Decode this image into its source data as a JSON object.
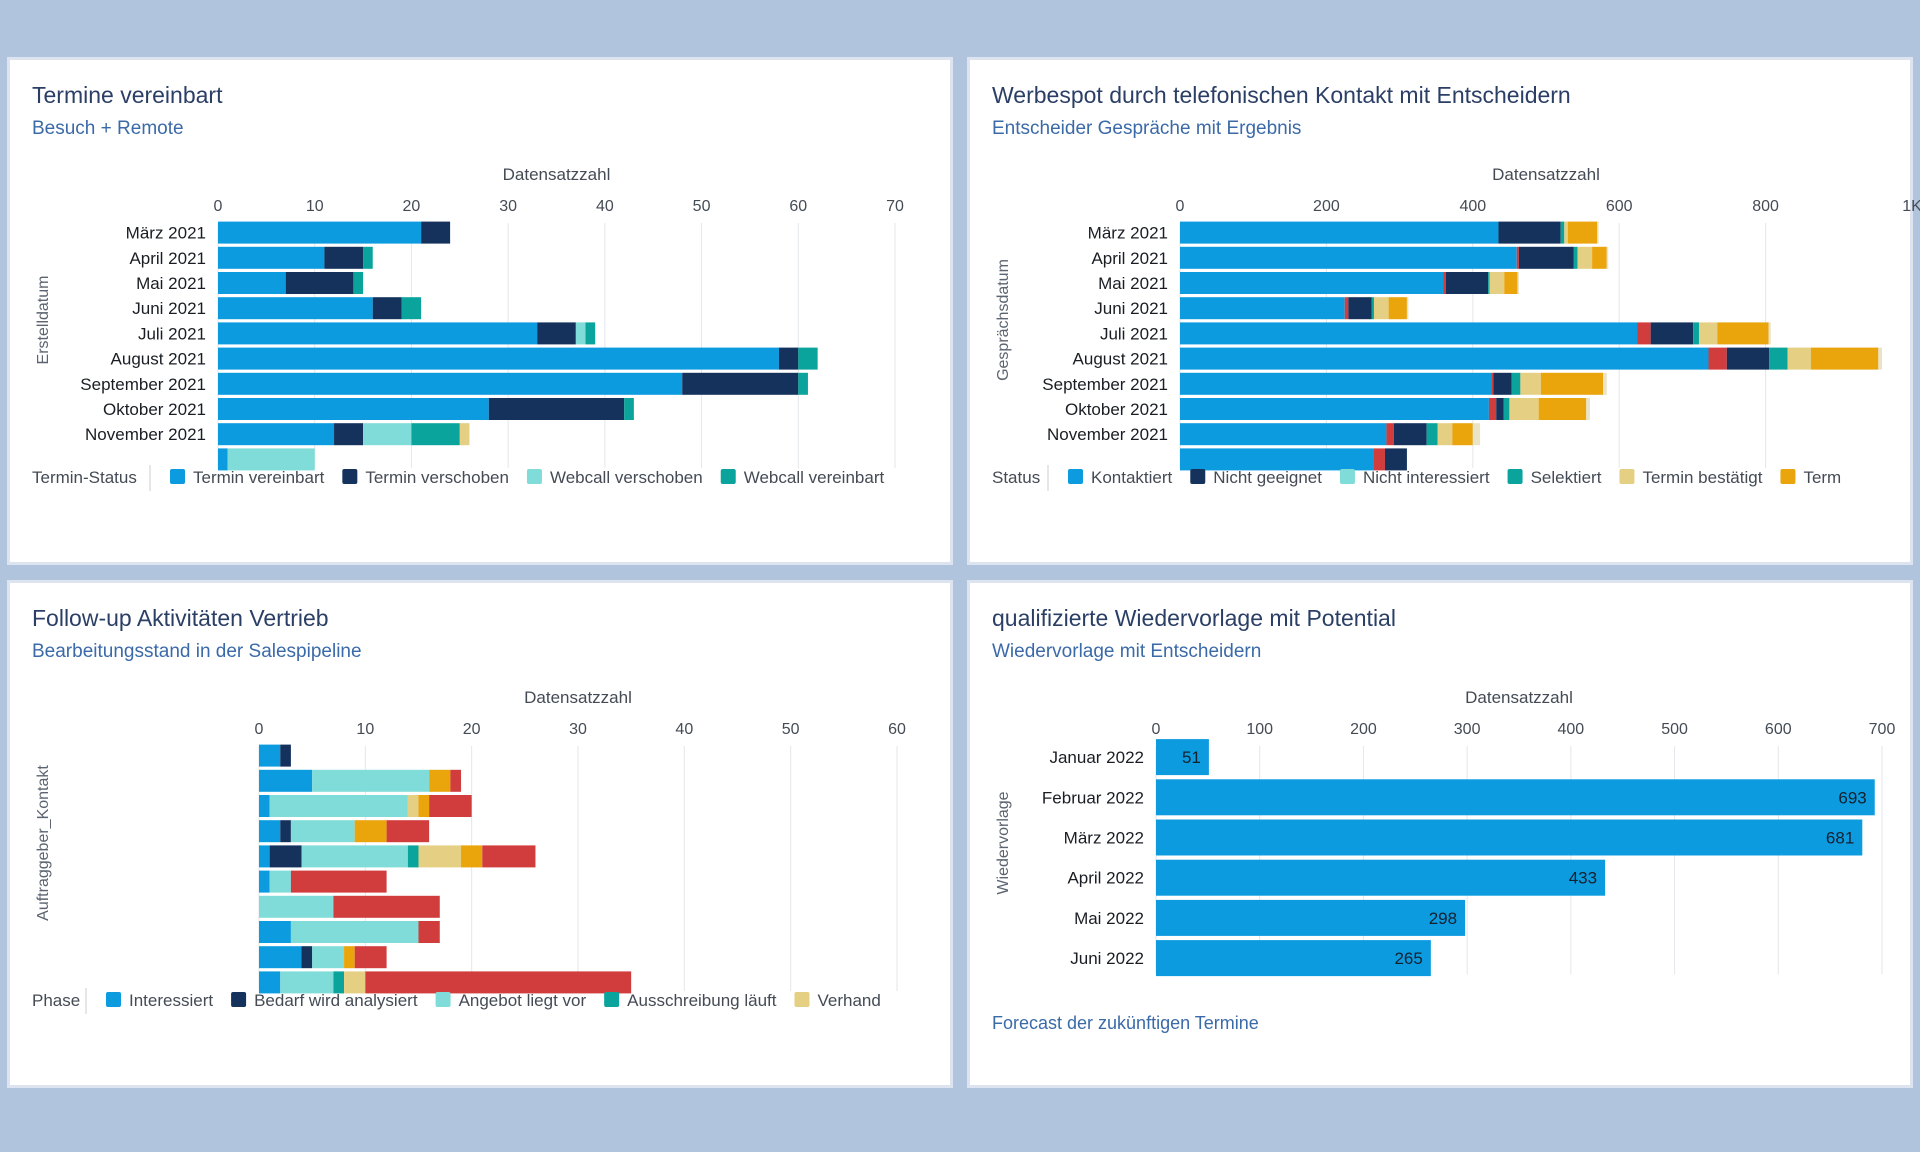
{
  "background": "#b1c4de",
  "charts": [
    {
      "id": "termine",
      "title": "Termine vereinbart",
      "subtitle": "Besuch + Remote",
      "chart_data": {
        "type": "bar",
        "orientation": "horizontal",
        "stacked": true,
        "xlabel": "Datensatzzahl",
        "ylabel": "Erstelldatum",
        "xlim": [
          0,
          70
        ],
        "ticks": [
          0,
          10,
          20,
          30,
          40,
          50,
          60,
          70
        ],
        "tick_labels": [
          "0",
          "10",
          "20",
          "30",
          "40",
          "50",
          "60",
          "70"
        ],
        "categories": [
          "März 2021",
          "April 2021",
          "Mai 2021",
          "Juni 2021",
          "Juli 2021",
          "August 2021",
          "September 2021",
          "Oktober 2021",
          "November 2021",
          ""
        ],
        "legend_title": "Termin-Status",
        "legend_position": "bottom",
        "grid": true,
        "series": [
          {
            "name": "Termin vereinbart",
            "color": "#0c9bdf",
            "values": [
              21,
              11,
              7,
              16,
              33,
              58,
              48,
              28,
              12,
              1
            ]
          },
          {
            "name": "Termin verschoben",
            "color": "#14325c",
            "values": [
              3,
              4,
              7,
              3,
              4,
              2,
              12,
              14,
              3,
              0
            ]
          },
          {
            "name": "Webcall verschoben",
            "color": "#7fdcd8",
            "values": [
              0,
              0,
              0,
              0,
              1,
              0,
              0,
              0,
              5,
              9
            ]
          },
          {
            "name": "Webcall vereinbart",
            "color": "#0aa49c",
            "values": [
              0,
              1,
              1,
              2,
              1,
              2,
              1,
              1,
              5,
              0
            ]
          },
          {
            "name": "",
            "color": "#e5cf82",
            "values": [
              0,
              0,
              0,
              0,
              0,
              0,
              0,
              0,
              1,
              0
            ]
          }
        ]
      }
    },
    {
      "id": "werbespot",
      "title": "Werbespot durch telefonischen Kontakt mit Entscheidern",
      "subtitle": "Entscheider Gespräche mit Ergebnis",
      "chart_data": {
        "type": "bar",
        "orientation": "horizontal",
        "stacked": true,
        "xlabel": "Datensatzzahl",
        "ylabel": "Gesprächsdatum",
        "xlim": [
          0,
          1000
        ],
        "ticks": [
          0,
          200,
          400,
          600,
          800,
          1000
        ],
        "tick_labels": [
          "0",
          "200",
          "400",
          "600",
          "800",
          "1K"
        ],
        "categories": [
          "März 2021",
          "April 2021",
          "Mai 2021",
          "Juni 2021",
          "Juli 2021",
          "August 2021",
          "September 2021",
          "Oktober 2021",
          "November 2021",
          ""
        ],
        "legend_title": "Status",
        "legend_position": "bottom",
        "grid": true,
        "series": [
          {
            "name": "Kontaktiert",
            "color": "#0c9bdf",
            "values": [
              435,
              460,
              360,
              225,
              625,
              722,
              425,
              422,
              282,
              265
            ]
          },
          {
            "name": "",
            "color": "#d13c3c",
            "values": [
              0,
              3,
              3,
              5,
              18,
              25,
              3,
              10,
              10,
              15
            ]
          },
          {
            "name": "Nicht geeignet",
            "color": "#14325c",
            "values": [
              85,
              75,
              58,
              32,
              58,
              58,
              25,
              10,
              45,
              30
            ]
          },
          {
            "name": "Nicht interessiert",
            "color": "#7fdcd8",
            "values": [
              0,
              0,
              0,
              0,
              0,
              0,
              0,
              0,
              0,
              0
            ]
          },
          {
            "name": "Selektiert",
            "color": "#0aa49c",
            "values": [
              5,
              5,
              2,
              3,
              8,
              25,
              12,
              8,
              15,
              0
            ]
          },
          {
            "name": "Termin bestätigt",
            "color": "#e5cf82",
            "values": [
              5,
              20,
              20,
              20,
              25,
              32,
              28,
              40,
              20,
              0
            ]
          },
          {
            "name": "Term",
            "color": "#eaa40c",
            "values": [
              40,
              20,
              18,
              25,
              70,
              92,
              85,
              65,
              28,
              0
            ]
          },
          {
            "name": "",
            "color": "#e9e3c8",
            "values": [
              2,
              2,
              2,
              2,
              3,
              5,
              5,
              5,
              10,
              0
            ]
          }
        ]
      }
    },
    {
      "id": "followup",
      "title": "Follow-up Aktivitäten Vertrieb",
      "subtitle": "Bearbeitungsstand in der Salespipeline",
      "chart_data": {
        "type": "bar",
        "orientation": "horizontal",
        "stacked": true,
        "xlabel": "Datensatzzahl",
        "ylabel": "Auftraggeber_Kontakt",
        "xlim": [
          0,
          60
        ],
        "ticks": [
          0,
          10,
          20,
          30,
          40,
          50,
          60
        ],
        "tick_labels": [
          "0",
          "10",
          "20",
          "30",
          "40",
          "50",
          "60"
        ],
        "categories": [
          "",
          "",
          "",
          "",
          "",
          "",
          "",
          "",
          "",
          ""
        ],
        "legend_title": "Phase",
        "legend_position": "bottom",
        "grid": true,
        "series": [
          {
            "name": "Interessiert",
            "color": "#0c9bdf",
            "values": [
              2,
              5,
              1,
              2,
              1,
              1,
              0,
              3,
              4,
              2
            ]
          },
          {
            "name": "Bedarf wird analysiert",
            "color": "#14325c",
            "values": [
              1,
              0,
              0,
              1,
              3,
              0,
              0,
              0,
              1,
              0
            ]
          },
          {
            "name": "Angebot liegt vor",
            "color": "#7fdcd8",
            "values": [
              0,
              11,
              13,
              6,
              10,
              2,
              7,
              12,
              3,
              5
            ]
          },
          {
            "name": "Ausschreibung läuft",
            "color": "#0aa49c",
            "values": [
              0,
              0,
              0,
              0,
              1,
              0,
              0,
              0,
              0,
              1
            ]
          },
          {
            "name": "Verhand",
            "color": "#e5cf82",
            "values": [
              0,
              0,
              1,
              0,
              4,
              0,
              0,
              0,
              0,
              2
            ]
          },
          {
            "name": "",
            "color": "#eaa40c",
            "values": [
              0,
              2,
              1,
              3,
              2,
              0,
              0,
              0,
              1,
              0
            ]
          },
          {
            "name": "",
            "color": "#d13c3c",
            "values": [
              0,
              1,
              4,
              4,
              5,
              9,
              10,
              2,
              3,
              25
            ]
          }
        ]
      }
    },
    {
      "id": "wiedervorlage",
      "title": "qualifizierte Wiedervorlage mit Potential",
      "subtitle": "Wiedervorlage mit Entscheidern",
      "footer": "Forecast der zukünftigen Termine",
      "chart_data": {
        "type": "bar",
        "orientation": "horizontal",
        "stacked": false,
        "xlabel": "Datensatzzahl",
        "ylabel": "Wiedervorlage",
        "xlim": [
          0,
          700
        ],
        "ticks": [
          0,
          100,
          200,
          300,
          400,
          500,
          600,
          700
        ],
        "tick_labels": [
          "0",
          "100",
          "200",
          "300",
          "400",
          "500",
          "600",
          "700"
        ],
        "categories": [
          "Januar 2022",
          "Februar 2022",
          "März 2022",
          "April 2022",
          "Mai 2022",
          "Juni 2022"
        ],
        "grid": true,
        "data_labels": true,
        "series": [
          {
            "name": "",
            "color": "#0c9bdf",
            "values": [
              51,
              693,
              681,
              433,
              298,
              265
            ]
          }
        ]
      }
    }
  ]
}
